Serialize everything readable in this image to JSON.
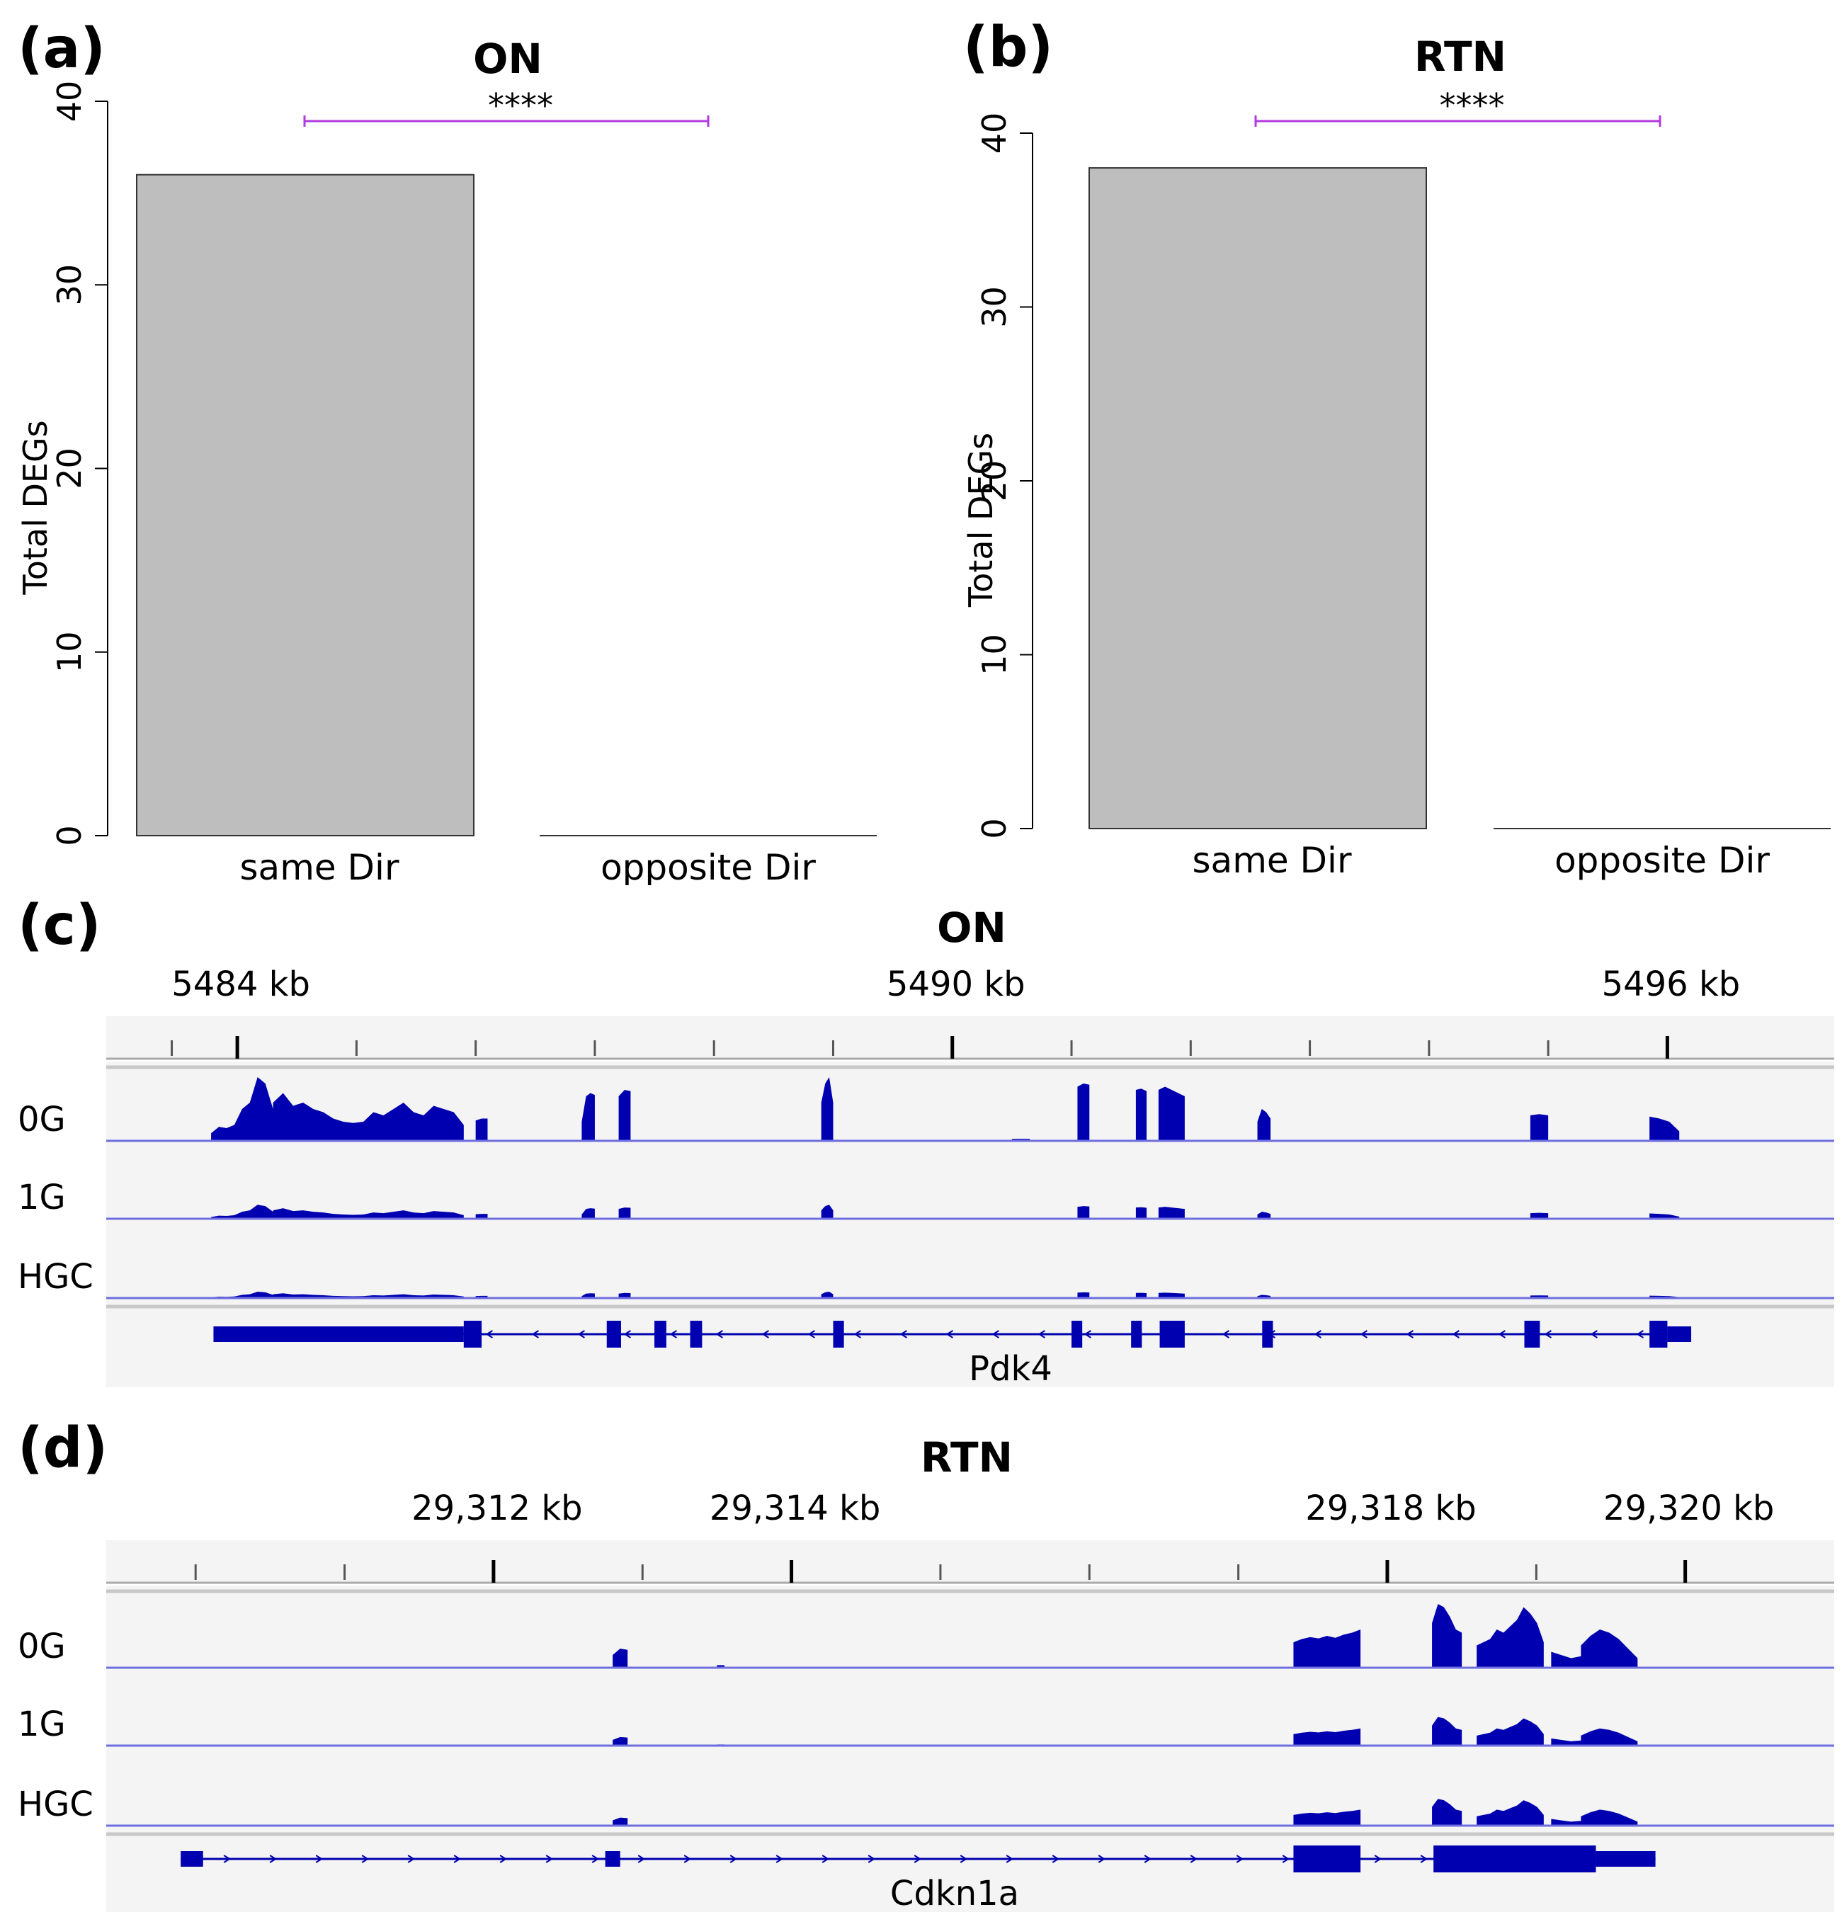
{
  "figure": {
    "panel_labels": [
      "(a)",
      "(b)",
      "(c)",
      "(d)"
    ]
  },
  "chart_data": [
    {
      "type": "bar",
      "panel": "(a)",
      "title": "ON",
      "ylabel": "Total DEGs",
      "categories": [
        "same Dir",
        "opposite Dir"
      ],
      "values": [
        36,
        0
      ],
      "ylim": [
        0,
        40
      ],
      "yticks": [
        "0",
        "10",
        "20",
        "30",
        "40"
      ],
      "bar_color": "#bebebe",
      "significance": {
        "label": "****",
        "color": "#b23ae0",
        "between": [
          "same Dir",
          "opposite Dir"
        ]
      },
      "grid": false,
      "legend": "none"
    },
    {
      "type": "bar",
      "panel": "(b)",
      "title": "RTN",
      "ylabel": "Total DEGs",
      "categories": [
        "same Dir",
        "opposite Dir"
      ],
      "values": [
        38,
        0
      ],
      "ylim": [
        0,
        40
      ],
      "yticks": [
        "0",
        "10",
        "20",
        "30",
        "40"
      ],
      "bar_color": "#bebebe",
      "significance": {
        "label": "****",
        "color": "#b23ae0",
        "between": [
          "same Dir",
          "opposite Dir"
        ]
      },
      "grid": false,
      "legend": "none"
    },
    {
      "type": "area",
      "panel": "(c)",
      "title": "ON",
      "x_unit": "kb",
      "xlim": [
        5482.9,
        5497.4
      ],
      "major_ticks": [
        5484,
        5490,
        5496
      ],
      "tick_labels": [
        "5484 kb",
        "5490 kb",
        "5496 kb"
      ],
      "minor_ticks": [
        5483.45,
        5485.0,
        5486.0,
        5487.0,
        5488.0,
        5489.0,
        5491.0,
        5492.0,
        5493.0,
        5494.0,
        5495.0
      ],
      "track_color": "#0000b0",
      "tracks": [
        {
          "name": "0G",
          "scale": 1.0
        },
        {
          "name": "1G",
          "scale": 0.22
        },
        {
          "name": "HGC",
          "scale": 0.1
        }
      ],
      "coverage_0G": {
        "x": [
          5483.8,
          5484.0,
          5484.3,
          5484.6,
          5484.8,
          5485.2,
          5485.5,
          5485.8,
          5486.0,
          5486.9,
          5487.2,
          5487.3,
          5487.6,
          5488.9,
          5489.0,
          5490.5,
          5491.0,
          5492.0,
          5492.5,
          5492.7,
          5492.9,
          5493.6,
          5495.7,
          5496.0,
          5496.2
        ],
        "y": [
          0.2,
          0.35,
          1.0,
          0.7,
          0.55,
          0.4,
          0.6,
          0.5,
          0.45,
          0.35,
          0.75,
          0.8,
          0.85,
          0.95,
          0.05,
          0.02,
          0.9,
          0.9,
          0.85,
          0.8,
          0.8,
          0.5,
          0.4,
          0.4,
          0.3
        ]
      },
      "gene": {
        "name": "Pdk4",
        "strand": "-",
        "span": [
          5483.8,
          5496.2
        ],
        "utr": [
          [
            5483.8,
            5485.9
          ],
          [
            5496.0,
            5496.2
          ]
        ],
        "exons": [
          [
            5485.9,
            5486.05
          ],
          [
            5487.1,
            5487.22
          ],
          [
            5487.5,
            5487.6
          ],
          [
            5487.8,
            5487.9
          ],
          [
            5489.0,
            5489.09
          ],
          [
            5491.0,
            5491.09
          ],
          [
            5491.5,
            5491.59
          ],
          [
            5491.74,
            5491.95
          ],
          [
            5492.6,
            5492.69
          ],
          [
            5494.8,
            5494.93
          ],
          [
            5495.85,
            5496.0
          ]
        ]
      }
    },
    {
      "type": "area",
      "panel": "(d)",
      "title": "RTN",
      "x_unit": "kb",
      "xlim": [
        29309.4,
        29321.0
      ],
      "major_ticks": [
        29312,
        29314,
        29318,
        29320
      ],
      "tick_labels": [
        "29,312 kb",
        "29,314 kb",
        "29,318 kb",
        "29,320 kb"
      ],
      "minor_ticks": [
        29310.0,
        29311.0,
        29313.0,
        29315.0,
        29316.0,
        29317.0,
        29319.0
      ],
      "track_color": "#0000b0",
      "tracks": [
        {
          "name": "0G",
          "scale": 1.0
        },
        {
          "name": "1G",
          "scale": 0.45
        },
        {
          "name": "HGC",
          "scale": 0.42
        }
      ],
      "coverage_0G": {
        "x": [
          29312.8,
          29313.5,
          29317.4,
          29317.9,
          29318.3,
          29318.5,
          29318.7,
          29319.0,
          29319.3,
          29319.6,
          29319.8
        ],
        "y": [
          0.3,
          0.04,
          0.55,
          0.65,
          1.0,
          0.55,
          0.8,
          0.95,
          0.3,
          0.6,
          0.3
        ]
      },
      "gene": {
        "name": "Cdkn1a",
        "strand": "+",
        "span": [
          29309.9,
          29319.8
        ],
        "utr": [
          [
            29309.9,
            29310.05
          ],
          [
            29312.75,
            29312.85
          ],
          [
            29319.4,
            29319.8
          ]
        ],
        "exons": [
          [
            29317.37,
            29317.82
          ],
          [
            29318.31,
            29319.4
          ]
        ]
      }
    }
  ]
}
